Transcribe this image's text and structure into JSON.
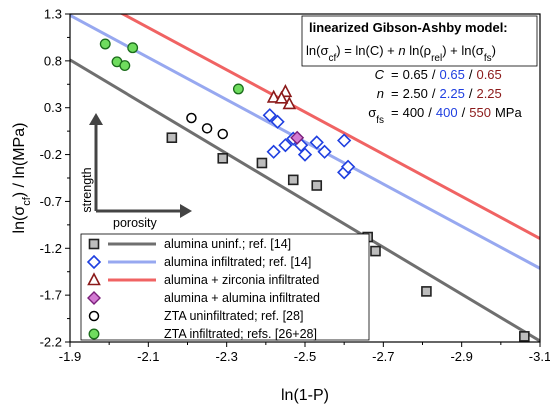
{
  "chart_data": {
    "type": "scatter",
    "xlabel": "ln(1-P)",
    "ylabel": {
      "prefix": "ln(σ",
      "sub": "cf",
      "suffix": ") / ln(MPa)"
    },
    "xlim": [
      -1.9,
      -3.1
    ],
    "ylim": [
      -2.2,
      1.3
    ],
    "x_ticks": [
      -1.9,
      -2.1,
      -2.3,
      -2.5,
      -2.7,
      -2.9,
      -3.1
    ],
    "x_tick_labels": [
      "-1.9",
      "-2.1",
      "-2.3",
      "-2.5",
      "-2.7",
      "-2.9",
      "-3.1"
    ],
    "y_ticks": [
      1.3,
      0.8,
      0.3,
      -0.2,
      -0.7,
      -1.2,
      -1.7,
      -2.2
    ],
    "y_tick_labels": [
      "1.3",
      "0.8",
      "0.3",
      "-0.2",
      "-0.7",
      "-1.2",
      "-1.7",
      "-2.2"
    ],
    "x_axis_reversed": true,
    "grid": false,
    "colors": {
      "gray_line": "#6f6f6f",
      "blue_line": "#97a8f0",
      "red_line": "#f06363",
      "gray_marker_fill": "#bdbdbd",
      "gray_marker_stroke": "#222222",
      "blue_marker": "#1f3fe0",
      "red_marker": "#8b1a1a",
      "magenta_fill": "#d37ad3",
      "magenta_stroke": "#7a1f7a",
      "green_fill": "#6fdc5e",
      "green_stroke": "#1a6b1a",
      "black": "#000000",
      "blue_text": "#1f3fe0",
      "red_text": "#8b1a1a"
    },
    "model_lines": [
      {
        "key": "gray",
        "C": 0.65,
        "n": 2.5,
        "sigma_fs": 400,
        "x_range": [
          -1.9,
          -3.1
        ]
      },
      {
        "key": "blue",
        "C": 0.65,
        "n": 2.25,
        "sigma_fs": 400,
        "x_range": [
          -1.9,
          -3.1
        ]
      },
      {
        "key": "red",
        "C": 0.65,
        "n": 2.25,
        "sigma_fs": 550,
        "x_range": [
          -1.9,
          -3.1
        ]
      }
    ],
    "series": [
      {
        "name": "alumina uninf.; ref. [14]",
        "marker": "square",
        "points": [
          [
            -2.16,
            -0.02
          ],
          [
            -2.29,
            -0.24
          ],
          [
            -2.39,
            -0.29
          ],
          [
            -2.47,
            -0.47
          ],
          [
            -2.53,
            -0.53
          ],
          [
            -2.66,
            -1.08
          ],
          [
            -2.68,
            -1.23
          ],
          [
            -2.81,
            -1.66
          ],
          [
            -3.06,
            -2.14
          ]
        ]
      },
      {
        "name": "alumina infiltrated; ref. [14]",
        "marker": "diamond",
        "points": [
          [
            -2.41,
            0.22
          ],
          [
            -2.43,
            0.15
          ],
          [
            -2.42,
            -0.17
          ],
          [
            -2.45,
            -0.1
          ],
          [
            -2.47,
            -0.03
          ],
          [
            -2.49,
            -0.1
          ],
          [
            -2.5,
            -0.2
          ],
          [
            -2.53,
            -0.07
          ],
          [
            -2.55,
            -0.17
          ],
          [
            -2.6,
            -0.05
          ],
          [
            -2.6,
            -0.39
          ],
          [
            -2.61,
            -0.33
          ]
        ]
      },
      {
        "name": "alumina + zirconia infiltrated",
        "marker": "triangle",
        "points": [
          [
            -2.42,
            0.41
          ],
          [
            -2.45,
            0.47
          ],
          [
            -2.46,
            0.34
          ],
          [
            -2.44,
            0.4
          ]
        ]
      },
      {
        "name": "alumina + alumina infiltrated",
        "marker": "diamond-magenta",
        "points": [
          [
            -2.48,
            -0.02
          ]
        ]
      },
      {
        "name": "ZTA uninfiltrated; ref. [28]",
        "marker": "circle-open",
        "points": [
          [
            -2.21,
            0.19
          ],
          [
            -2.25,
            0.08
          ],
          [
            -2.29,
            0.02
          ]
        ]
      },
      {
        "name": "ZTA infiltrated; refs. [26+28]",
        "marker": "circle-green",
        "points": [
          [
            -1.99,
            0.98
          ],
          [
            -2.02,
            0.79
          ],
          [
            -2.04,
            0.75
          ],
          [
            -2.06,
            0.94
          ],
          [
            -2.33,
            0.5
          ]
        ]
      }
    ]
  },
  "model_box": {
    "title": "linearized Gibson-Ashby model:",
    "eq_a": "ln(σ",
    "eq_a_sub": "cf",
    "eq_b": ") = ln(C) + ",
    "eq_n": "n",
    "eq_c": " ln(ρ",
    "eq_c_sub": "rel",
    "eq_d": ") + ln(σ",
    "eq_d_sub": "fs",
    "eq_e": ")",
    "c_label": "C",
    "n_label": "n",
    "sf_label": "σ",
    "sf_sub": "fs",
    "c_vals": [
      "0.65",
      "0.65",
      "0.65"
    ],
    "n_vals": [
      "2.50",
      "2.25",
      "2.25"
    ],
    "sf_vals": [
      "400",
      "400",
      "550"
    ],
    "sep": "/",
    "eq_sign": "=",
    "unit": "MPa"
  },
  "arrows": {
    "strength": "strength",
    "porosity": "porosity"
  },
  "legend": {
    "items": [
      "alumina uninf.; ref. [14]",
      "alumina infiltrated; ref. [14]",
      "alumina + zirconia infiltrated",
      "alumina + alumina infiltrated",
      "ZTA uninfiltrated; ref. [28]",
      "ZTA infiltrated; refs. [26+28]"
    ]
  }
}
